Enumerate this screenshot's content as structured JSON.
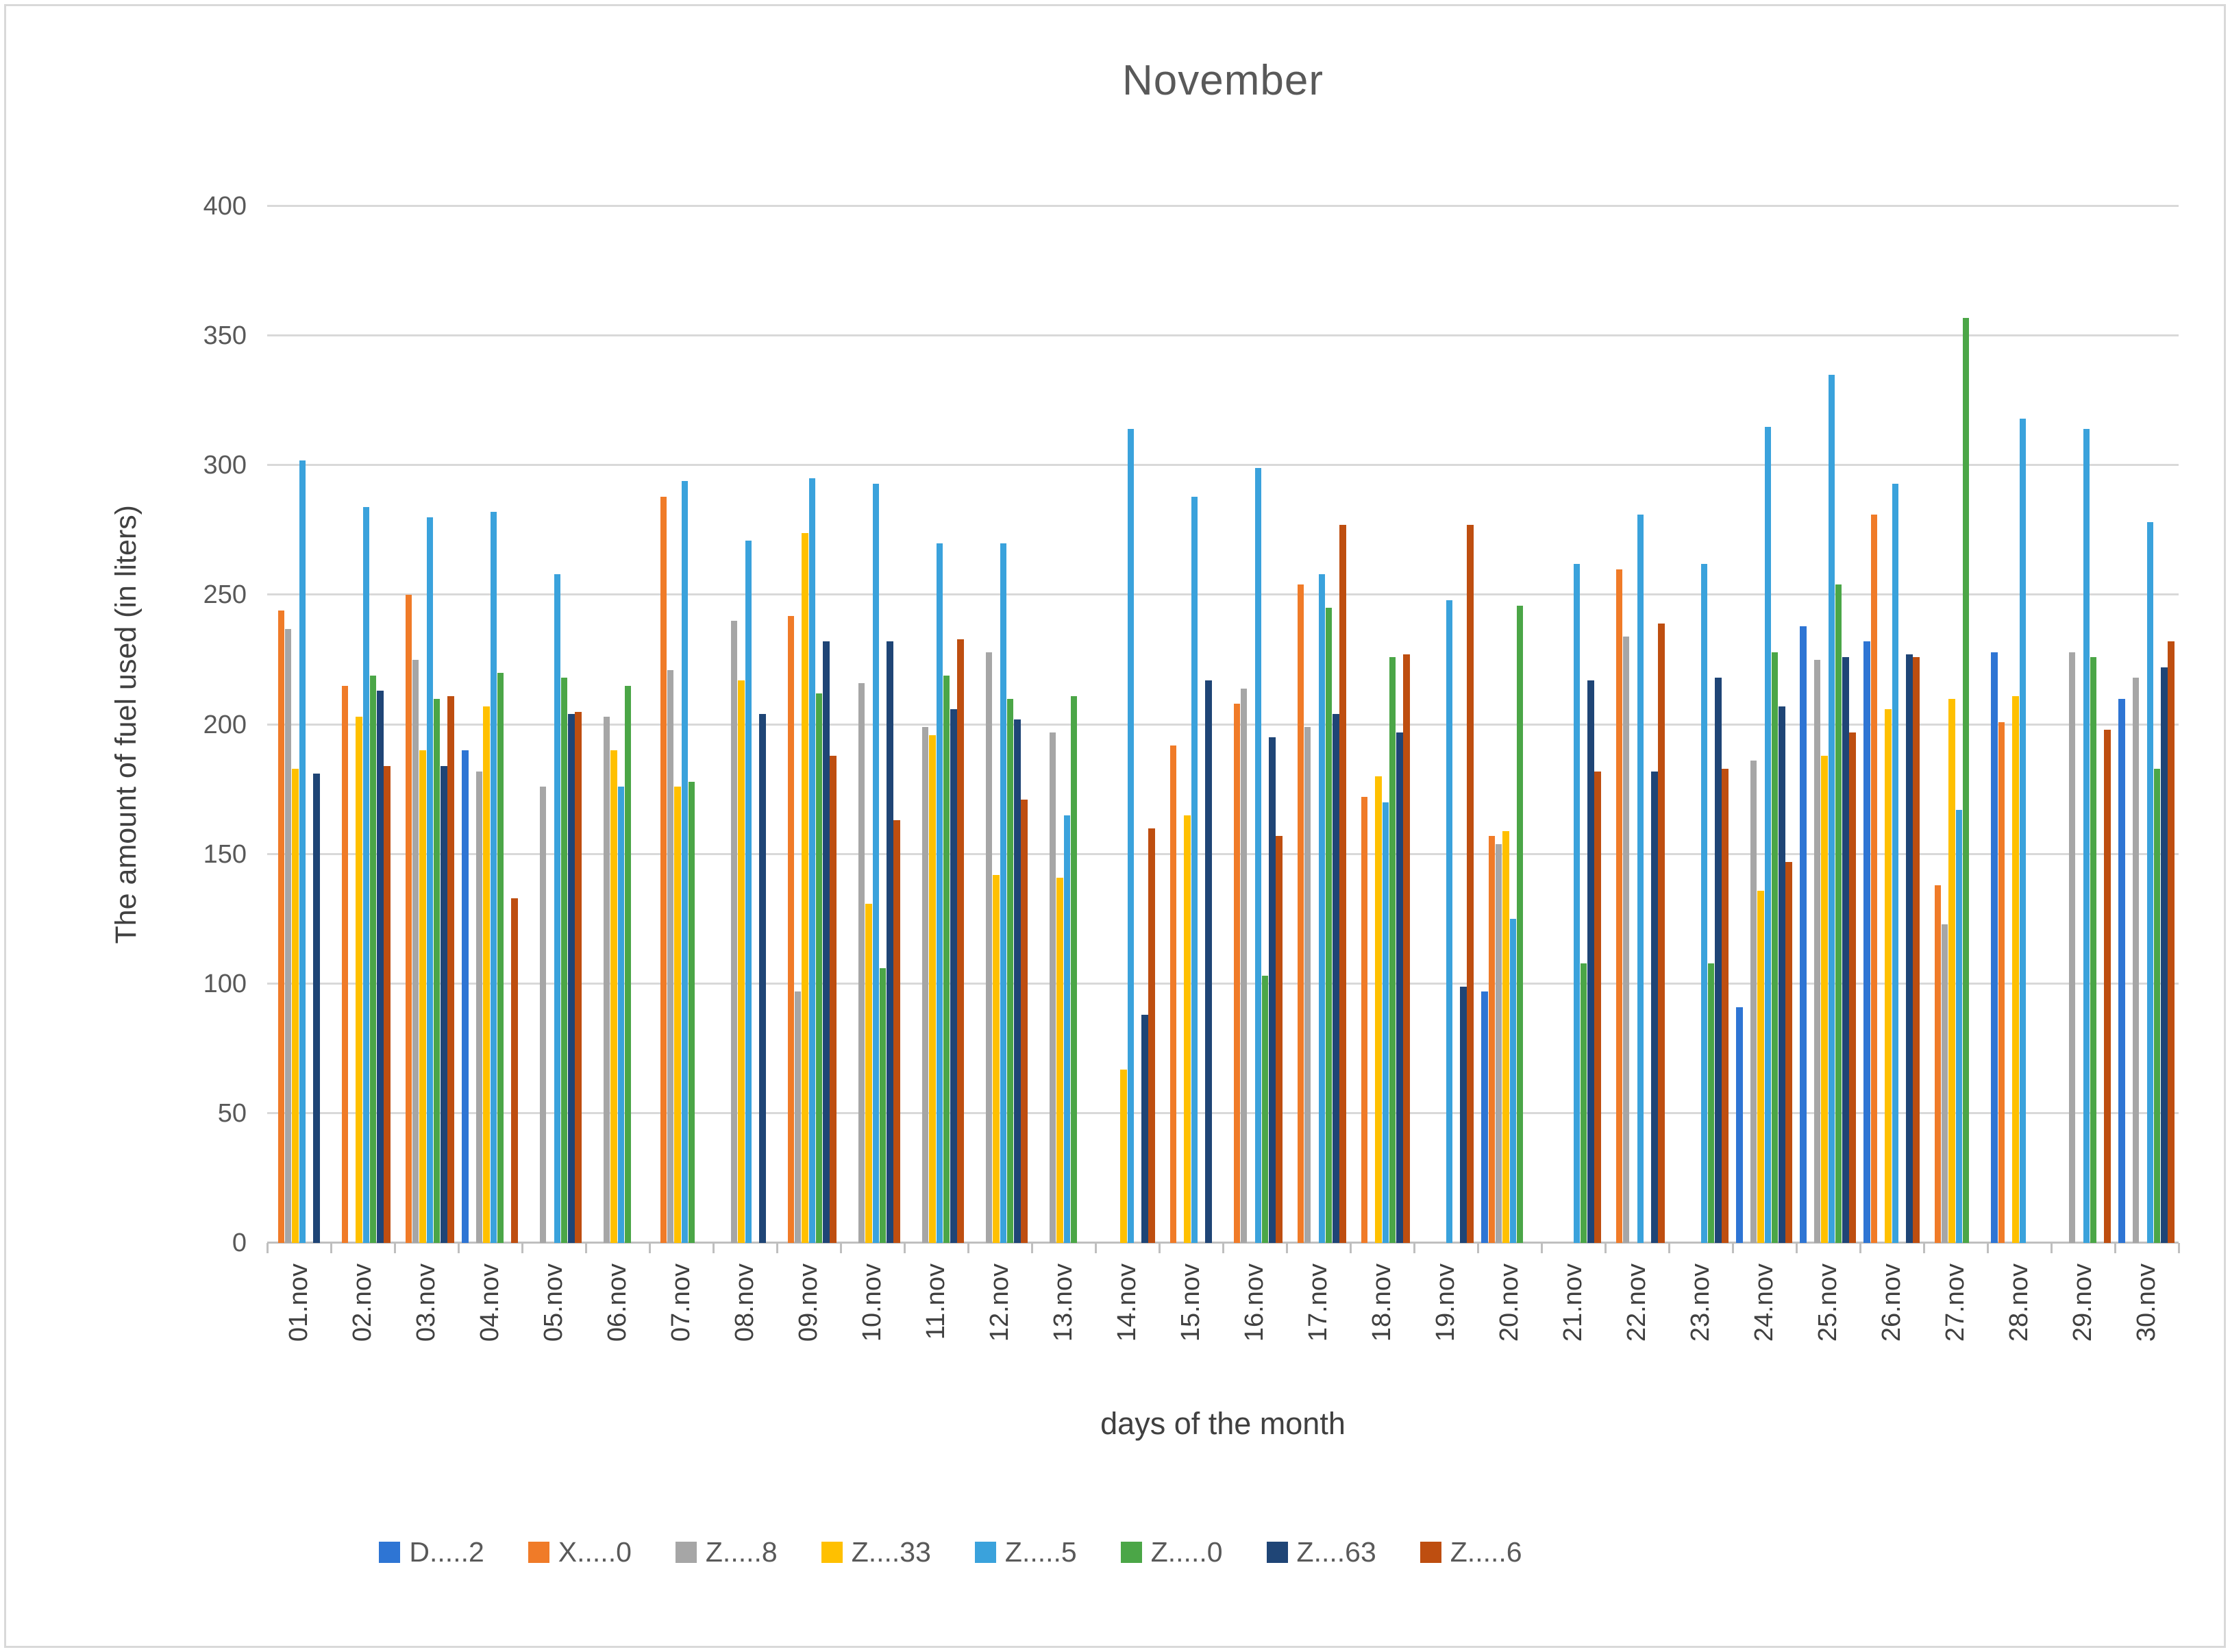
{
  "chart_data": {
    "type": "bar",
    "title": "November",
    "xlabel": "days of the month",
    "ylabel": "The amount of fuel used (in liters)",
    "ylim": [
      0,
      400
    ],
    "yticks": [
      0,
      50,
      100,
      150,
      200,
      250,
      300,
      350,
      400
    ],
    "grid": true,
    "legend_position": "bottom",
    "categories": [
      "01.nov",
      "02.nov",
      "03.nov",
      "04.nov",
      "05.nov",
      "06.nov",
      "07.nov",
      "08.nov",
      "09.nov",
      "10.nov",
      "11.nov",
      "12.nov",
      "13.nov",
      "14.nov",
      "15.nov",
      "16.nov",
      "17.nov",
      "18.nov",
      "19.nov",
      "20.nov",
      "21.nov",
      "22.nov",
      "23.nov",
      "24.nov",
      "25.nov",
      "26.nov",
      "27.nov",
      "28.nov",
      "29.nov",
      "30.nov"
    ],
    "missing_value_means_no_bar": 0,
    "series": [
      {
        "name": "D.....2",
        "color": "#2E75D4",
        "values": [
          0,
          0,
          0,
          190,
          0,
          0,
          0,
          0,
          0,
          0,
          0,
          0,
          0,
          0,
          0,
          0,
          0,
          0,
          0,
          97,
          0,
          0,
          0,
          91,
          238,
          232,
          0,
          228,
          0,
          210
        ]
      },
      {
        "name": "X.....0",
        "color": "#F07B28",
        "values": [
          244,
          215,
          250,
          0,
          0,
          0,
          288,
          0,
          242,
          0,
          0,
          0,
          0,
          0,
          192,
          208,
          254,
          172,
          0,
          157,
          0,
          260,
          0,
          0,
          0,
          281,
          138,
          201,
          0,
          0
        ]
      },
      {
        "name": "Z.....8",
        "color": "#A6A6A6",
        "values": [
          237,
          0,
          225,
          182,
          176,
          203,
          221,
          240,
          97,
          216,
          199,
          228,
          197,
          0,
          0,
          214,
          199,
          0,
          0,
          154,
          0,
          234,
          0,
          186,
          225,
          0,
          123,
          0,
          228,
          218
        ]
      },
      {
        "name": "Z....33",
        "color": "#FFC000",
        "values": [
          183,
          203,
          190,
          207,
          0,
          190,
          176,
          217,
          274,
          131,
          196,
          142,
          141,
          67,
          165,
          0,
          0,
          180,
          0,
          159,
          0,
          0,
          0,
          136,
          188,
          206,
          210,
          211,
          0,
          0
        ]
      },
      {
        "name": "Z.....5",
        "color": "#3AA2DC",
        "values": [
          302,
          284,
          280,
          282,
          258,
          176,
          294,
          271,
          295,
          293,
          270,
          270,
          165,
          314,
          288,
          299,
          258,
          170,
          248,
          125,
          262,
          281,
          262,
          315,
          335,
          293,
          167,
          318,
          314,
          278
        ]
      },
      {
        "name": "Z.....0",
        "color": "#4BA647",
        "values": [
          0,
          219,
          210,
          220,
          218,
          215,
          178,
          0,
          212,
          106,
          219,
          210,
          211,
          0,
          0,
          103,
          245,
          226,
          0,
          246,
          108,
          0,
          108,
          228,
          254,
          0,
          357,
          0,
          226,
          183
        ]
      },
      {
        "name": "Z....63",
        "color": "#1F4576",
        "values": [
          181,
          213,
          184,
          0,
          204,
          0,
          0,
          204,
          232,
          232,
          206,
          202,
          0,
          88,
          217,
          195,
          204,
          197,
          99,
          0,
          217,
          182,
          218,
          207,
          226,
          227,
          0,
          0,
          0,
          222
        ]
      },
      {
        "name": "Z.....6",
        "color": "#BE4E10",
        "values": [
          0,
          184,
          211,
          133,
          205,
          0,
          0,
          0,
          188,
          163,
          233,
          171,
          0,
          160,
          0,
          157,
          277,
          227,
          277,
          0,
          182,
          239,
          183,
          147,
          197,
          226,
          0,
          0,
          198,
          232
        ]
      }
    ]
  }
}
